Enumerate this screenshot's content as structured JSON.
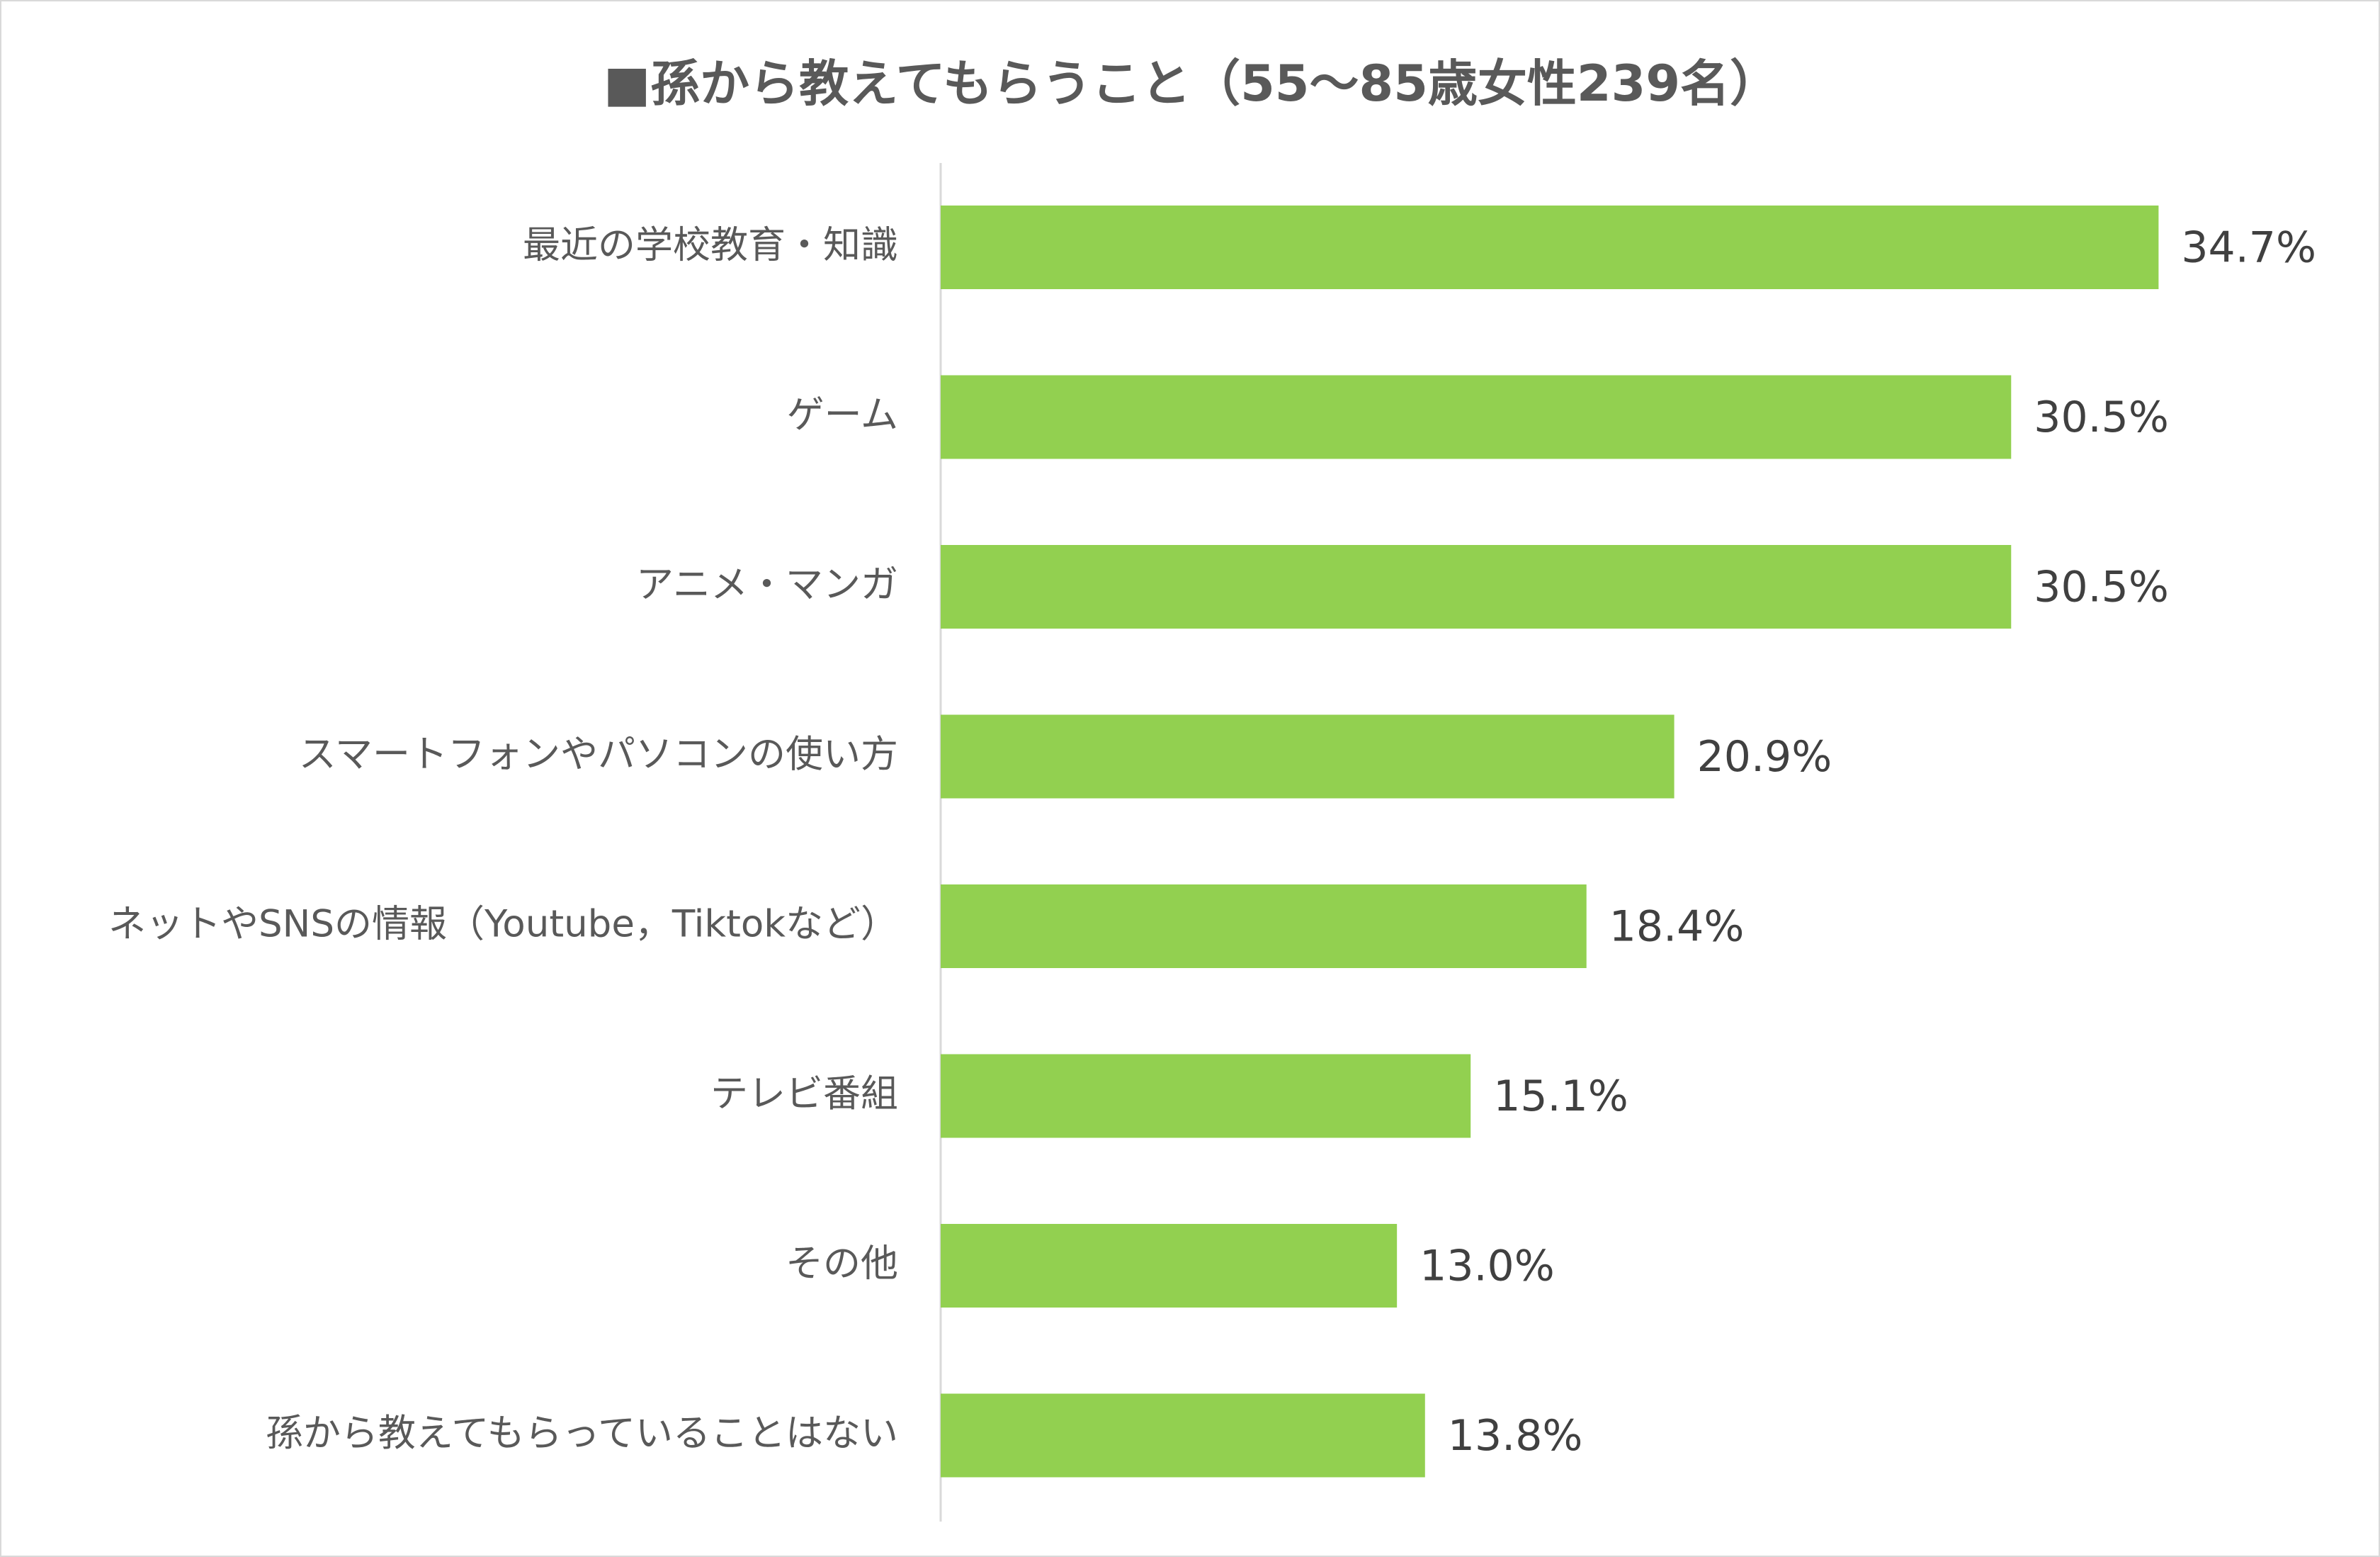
{
  "chart_data": {
    "type": "bar",
    "orientation": "horizontal",
    "title": "■孫から教えてもらうこと（55～85歳女性239名）",
    "categories": [
      "最近の学校教育・知識",
      "ゲーム",
      "アニメ・マンガ",
      "スマートフォンやパソコンの使い方",
      "ネットやSNSの情報（Youtube，Tiktokなど）",
      "テレビ番組",
      "その他",
      "孫から教えてもらっていることはない"
    ],
    "values": [
      34.7,
      30.5,
      30.5,
      20.9,
      18.4,
      15.1,
      13.0,
      13.8
    ],
    "value_labels": [
      "34.7%",
      "30.5%",
      "30.5%",
      "20.9%",
      "18.4%",
      "15.1%",
      "13.0%",
      "13.8%"
    ],
    "unit": "%",
    "bar_color": "#92d050",
    "grid": false,
    "legend": "none"
  }
}
